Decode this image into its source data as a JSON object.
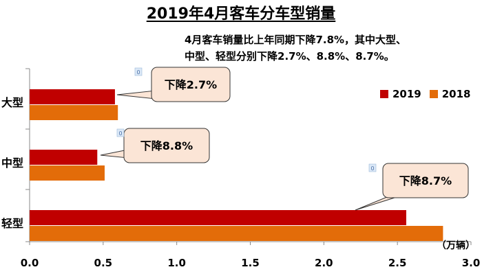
{
  "title": "2019年4月客车分车型销量",
  "subtitle_lines": [
    "4月客车销量比上年同期下降7.8%，其中大型、",
    "中型、轻型分别下降2.7%、8.8%、8.7%。"
  ],
  "unit_label": "（万辆）",
  "colors": {
    "s2019": "#c00000",
    "s2018": "#e36c09"
  },
  "chart_data": {
    "type": "bar",
    "orientation": "horizontal",
    "title": "2019年4月客车分车型销量",
    "categories": [
      "大型",
      "中型",
      "轻型"
    ],
    "series": [
      {
        "name": "2019",
        "values": [
          0.58,
          0.46,
          2.56
        ]
      },
      {
        "name": "2018",
        "values": [
          0.6,
          0.51,
          2.81
        ]
      }
    ],
    "xlim": [
      0,
      3.0
    ],
    "xticks": [
      "0.0",
      "0.5",
      "1.0",
      "1.5",
      "2.0",
      "2.5",
      "3.0"
    ],
    "xlabel": "（万辆）",
    "legend": "top-right",
    "annotations": [
      "下降2.7%",
      "下降8.8%",
      "下降8.7%"
    ],
    "badges": [
      "0",
      "0",
      "0"
    ]
  }
}
